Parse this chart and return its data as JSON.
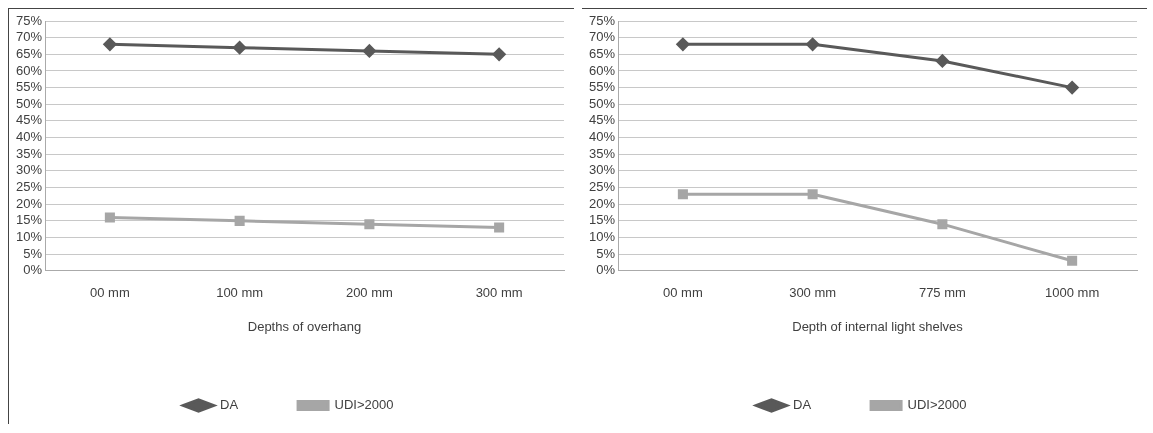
{
  "chart_data": [
    {
      "type": "line",
      "xlabel": "Depths of overhang",
      "categories": [
        "00 mm",
        "100 mm",
        "200 mm",
        "300 mm"
      ],
      "series": [
        {
          "name": "DA",
          "color": "#595959",
          "marker": "diamond",
          "values": [
            68,
            67,
            66,
            65
          ]
        },
        {
          "name": "UDI>2000",
          "color": "#a6a6a6",
          "marker": "square",
          "values": [
            16,
            15,
            14,
            13
          ]
        }
      ],
      "ylim": [
        0,
        75
      ],
      "yticks": [
        {
          "value": 0,
          "label": "0%"
        },
        {
          "value": 5,
          "label": "5%"
        },
        {
          "value": 10,
          "label": "10%"
        },
        {
          "value": 15,
          "label": "15%"
        },
        {
          "value": 20,
          "label": "20%"
        },
        {
          "value": 25,
          "label": "25%"
        },
        {
          "value": 30,
          "label": "30%"
        },
        {
          "value": 35,
          "label": "35%"
        },
        {
          "value": 40,
          "label": "40%"
        },
        {
          "value": 45,
          "label": "45%"
        },
        {
          "value": 50,
          "label": "50%"
        },
        {
          "value": 55,
          "label": "55%"
        },
        {
          "value": 60,
          "label": "60%"
        },
        {
          "value": 65,
          "label": "65%"
        },
        {
          "value": 70,
          "label": "70%"
        },
        {
          "value": 75,
          "label": "75%"
        }
      ],
      "grid": "y",
      "legend": "bottom"
    },
    {
      "type": "line",
      "xlabel": "Depth of internal light shelves",
      "categories": [
        "00 mm",
        "300 mm",
        "775 mm",
        "1000 mm"
      ],
      "series": [
        {
          "name": "DA",
          "color": "#595959",
          "marker": "diamond",
          "values": [
            68,
            68,
            63,
            55
          ]
        },
        {
          "name": "UDI>2000",
          "color": "#a6a6a6",
          "marker": "square",
          "values": [
            23,
            23,
            14,
            3
          ]
        }
      ],
      "ylim": [
        0,
        75
      ],
      "yticks": [
        {
          "value": 0,
          "label": "0%"
        },
        {
          "value": 5,
          "label": "5%"
        },
        {
          "value": 10,
          "label": "10%"
        },
        {
          "value": 15,
          "label": "15%"
        },
        {
          "value": 20,
          "label": "20%"
        },
        {
          "value": 25,
          "label": "25%"
        },
        {
          "value": 30,
          "label": "30%"
        },
        {
          "value": 35,
          "label": "35%"
        },
        {
          "value": 40,
          "label": "40%"
        },
        {
          "value": 45,
          "label": "45%"
        },
        {
          "value": 50,
          "label": "50%"
        },
        {
          "value": 55,
          "label": "55%"
        },
        {
          "value": 60,
          "label": "60%"
        },
        {
          "value": 65,
          "label": "65%"
        },
        {
          "value": 70,
          "label": "70%"
        },
        {
          "value": 75,
          "label": "75%"
        }
      ],
      "grid": "y",
      "legend": "bottom"
    }
  ]
}
